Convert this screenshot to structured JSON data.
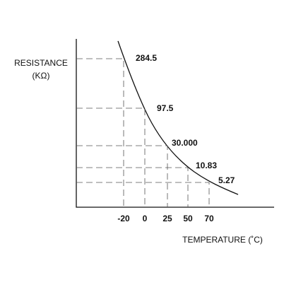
{
  "y_axis_title": [
    "RESISTANCE",
    "(KΩ)"
  ],
  "x_axis_title": "TEMPERATURE (˚C)",
  "points": [
    {
      "temperature": "-20",
      "resistance": "284.5"
    },
    {
      "temperature": "0",
      "resistance": "97.5"
    },
    {
      "temperature": "25",
      "resistance": "30.000"
    },
    {
      "temperature": "50",
      "resistance": "10.83"
    },
    {
      "temperature": "70",
      "resistance": "5.27"
    }
  ]
}
